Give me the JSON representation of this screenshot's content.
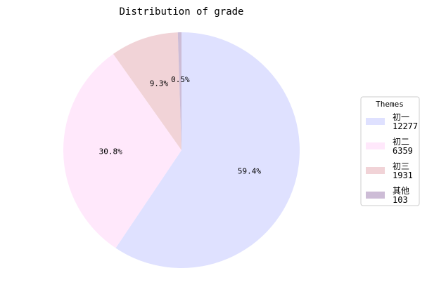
{
  "chart_data": {
    "type": "pie",
    "title": "Distribution of grade",
    "start_angle_deg": 90,
    "direction": "clockwise",
    "slices": [
      {
        "label": "初一",
        "count": "12277",
        "percent": 59.4,
        "percent_label": "59.4%",
        "color": "#dfe1ff"
      },
      {
        "label": "初二",
        "count": "6359",
        "percent": 30.8,
        "percent_label": "30.8%",
        "color": "#ffe8fb"
      },
      {
        "label": "初三",
        "count": "1931",
        "percent": 9.3,
        "percent_label": "9.3%",
        "color": "#f1d3d7"
      },
      {
        "label": "其他",
        "count": "103",
        "percent": 0.5,
        "percent_label": "0.5%",
        "color": "#cdbcd6"
      }
    ],
    "legend": {
      "title": "Themes",
      "placement": "right"
    }
  }
}
